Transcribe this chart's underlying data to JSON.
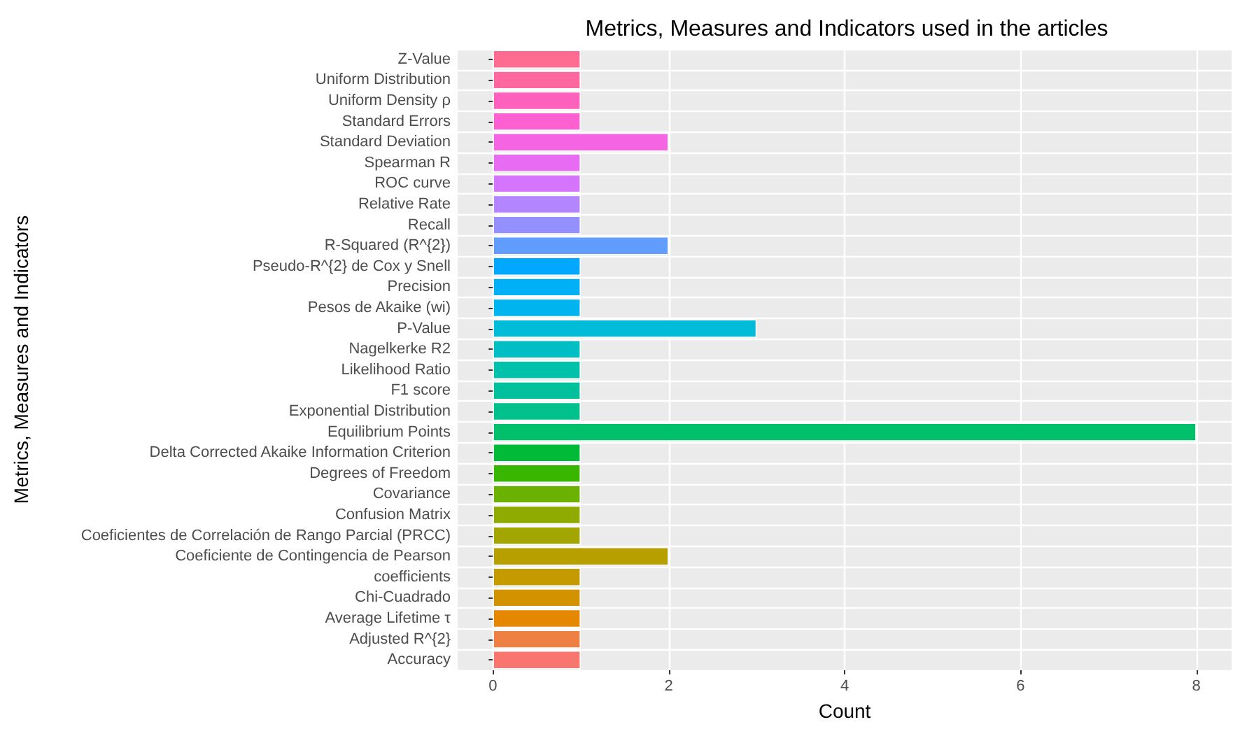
{
  "chart_data": {
    "type": "bar",
    "orientation": "horizontal",
    "title": "Metrics, Measures and Indicators used in the articles",
    "xlabel": "Count",
    "ylabel": "Metrics, Measures and Indicators",
    "categories": [
      "Z-Value",
      "Uniform Distribution",
      "Uniform Density ρ",
      "Standard Errors",
      "Standard Deviation",
      "Spearman R",
      "ROC curve",
      "Relative Rate",
      "Recall",
      "R-Squared (R^{2})",
      "Pseudo-R^{2} de Cox y Snell",
      "Precision",
      "Pesos de Akaike (wi)",
      "P-Value",
      "Nagelkerke R2",
      "Likelihood Ratio",
      "F1 score",
      "Exponential Distribution",
      "Equilibrium Points",
      "Delta Corrected Akaike Information Criterion",
      "Degrees of Freedom",
      "Covariance",
      "Confusion Matrix",
      "Coeficientes de Correlación de Rango Parcial (PRCC)",
      "Coeficiente de Contingencia de Pearson",
      "coefficients",
      "Chi-Cuadrado",
      "Average Lifetime τ",
      "Adjusted R^{2}",
      "Accuracy"
    ],
    "values": [
      1,
      1,
      1,
      1,
      2,
      1,
      1,
      1,
      1,
      2,
      1,
      1,
      1,
      3,
      1,
      1,
      1,
      1,
      8,
      1,
      1,
      1,
      1,
      1,
      2,
      1,
      1,
      1,
      1,
      1
    ],
    "colors": [
      "#FF6C91",
      "#FF689F",
      "#FF62BC",
      "#FD61D1",
      "#F564E3",
      "#E76BF3",
      "#D575FE",
      "#B385FF",
      "#9590FF",
      "#619CFF",
      "#00A9FF",
      "#00B0F6",
      "#00B4EF",
      "#00BCD8",
      "#00BFC4",
      "#00C1AA",
      "#00C19B",
      "#00C08B",
      "#00C06B",
      "#00BA38",
      "#39B600",
      "#6BB100",
      "#8FAA00",
      "#A3A500",
      "#B79F00",
      "#C49A00",
      "#D39200",
      "#E58700",
      "#EE8044",
      "#F8766D"
    ],
    "xlim": [
      -0.4,
      8.4
    ],
    "xticks": [
      0,
      2,
      4,
      6,
      8
    ],
    "grid": true
  }
}
